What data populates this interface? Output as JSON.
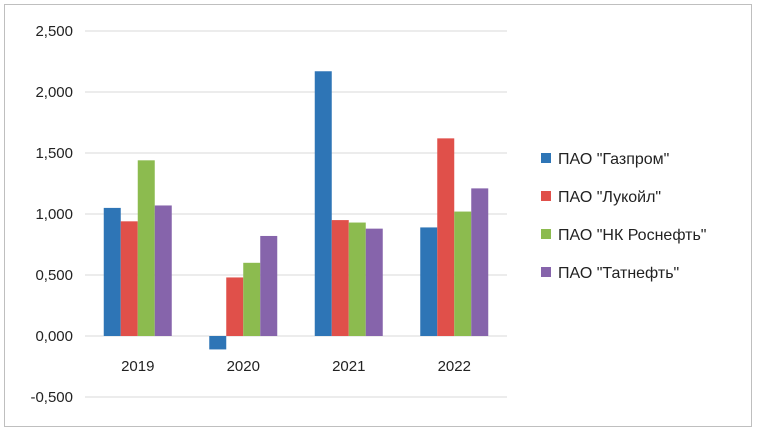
{
  "chart_data": {
    "type": "bar",
    "categories": [
      "2019",
      "2020",
      "2021",
      "2022"
    ],
    "series": [
      {
        "name": "ПАО \"Газпром\"",
        "color": "#2e75b6",
        "values": [
          1.05,
          -0.11,
          2.17,
          0.89
        ]
      },
      {
        "name": "ПАО \"Лукойл\"",
        "color": "#e0504a",
        "values": [
          0.94,
          0.48,
          0.95,
          1.62
        ]
      },
      {
        "name": "ПАО \"НК Роснефть\"",
        "color": "#8cbb4f",
        "values": [
          1.44,
          0.6,
          0.93,
          1.02
        ]
      },
      {
        "name": "ПАО \"Татнефть\"",
        "color": "#8664ab",
        "values": [
          1.07,
          0.82,
          0.88,
          1.21
        ]
      }
    ],
    "y_ticks": [
      "-0,500",
      "0,000",
      "0,500",
      "1,000",
      "1,500",
      "2,000",
      "2,500"
    ],
    "y_tick_values": [
      -0.5,
      0,
      0.5,
      1.0,
      1.5,
      2.0,
      2.5
    ],
    "ylim": [
      -0.5,
      2.5
    ],
    "grid": true,
    "legend": "right",
    "title": "",
    "xlabel": "",
    "ylabel": ""
  }
}
